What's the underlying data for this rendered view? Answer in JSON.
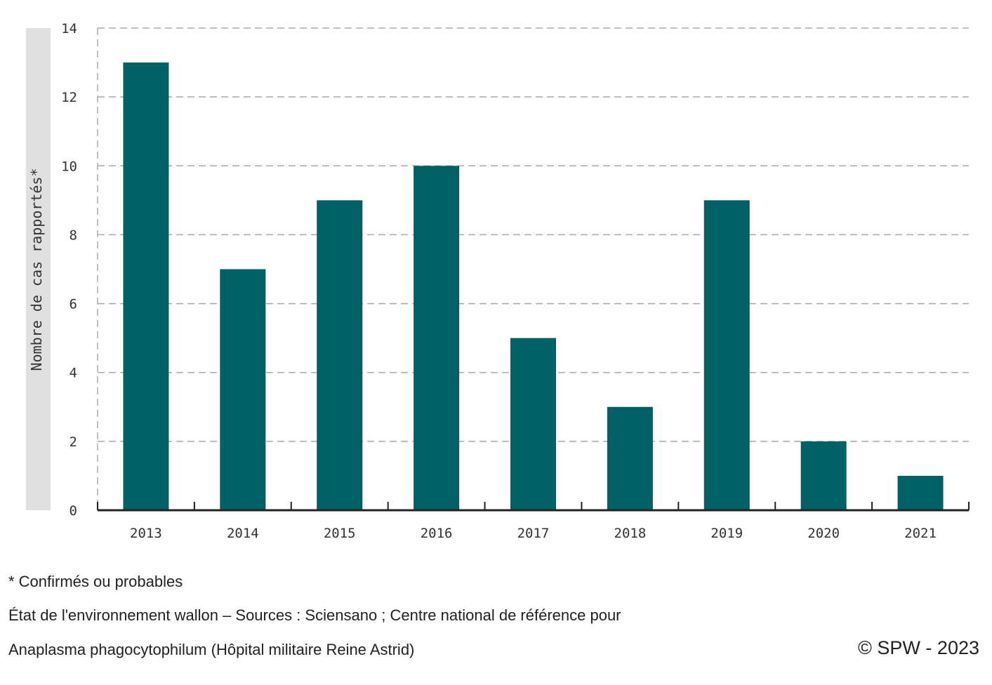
{
  "chart_data": {
    "type": "bar",
    "categories": [
      "2013",
      "2014",
      "2015",
      "2016",
      "2017",
      "2018",
      "2019",
      "2020",
      "2021"
    ],
    "values": [
      13,
      7,
      9,
      10,
      5,
      3,
      9,
      2,
      1
    ],
    "ylabel": "Nombre de cas rapportés*",
    "xlabel": "",
    "ylim": [
      0,
      14
    ],
    "yticks": [
      0,
      2,
      4,
      6,
      8,
      10,
      12,
      14
    ],
    "grid": true,
    "bar_color": "#006064",
    "grid_color": "#aaaaaa",
    "ylabel_background": "#e0e0e0"
  },
  "notes": {
    "asterisk": "* Confirmés ou probables",
    "source_line1": "État de l'environnement wallon – Sources : Sciensano ; Centre national de référence pour",
    "source_line2": "Anaplasma phagocytophilum (Hôpital militaire Reine Astrid)",
    "copyright": "© SPW - 2023"
  }
}
